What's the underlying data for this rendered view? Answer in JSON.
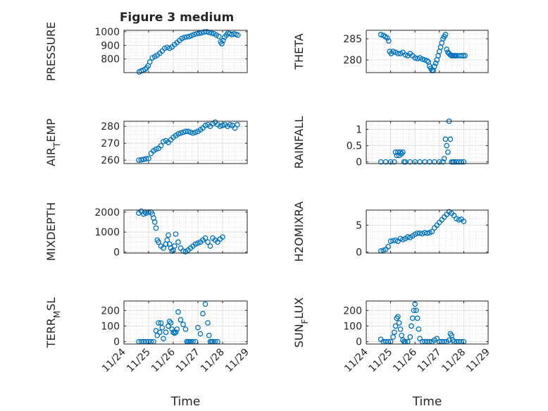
{
  "figure": {
    "title": "Figure 3 medium",
    "marker_color": "#0072BD",
    "axis_color": "#262626",
    "grid_color": "#c8c8c8"
  },
  "x_axis": {
    "label": "Time",
    "range": [
      0,
      5
    ],
    "tick_values": [
      0,
      1,
      2,
      3,
      4,
      5
    ],
    "tick_labels": [
      "11/24",
      "11/25",
      "11/26",
      "11/27",
      "11/28",
      "11/29"
    ]
  },
  "chart_data": [
    {
      "type": "scatter",
      "title": "Figure 3 medium",
      "ylabel": "PRESSURE",
      "ylim": [
        700,
        1010
      ],
      "yticks": [
        800,
        900,
        1000
      ],
      "yticklabels": [
        "800",
        "900",
        "1000"
      ],
      "x": [
        0.62,
        0.7,
        0.78,
        0.86,
        0.92,
        0.98,
        1.05,
        1.15,
        1.25,
        1.35,
        1.45,
        1.55,
        1.65,
        1.75,
        1.85,
        1.95,
        2.05,
        2.15,
        2.25,
        2.35,
        2.45,
        2.55,
        2.65,
        2.75,
        2.85,
        2.95,
        3.05,
        3.15,
        3.25,
        3.35,
        3.45,
        3.55,
        3.65,
        3.75,
        3.85,
        3.92,
        3.97,
        4.02,
        4.08,
        4.15,
        4.22,
        4.3,
        4.38,
        4.46,
        4.54,
        4.62
      ],
      "y": [
        705,
        712,
        718,
        725,
        735,
        750,
        778,
        808,
        818,
        828,
        842,
        858,
        878,
        885,
        878,
        888,
        905,
        920,
        935,
        950,
        958,
        962,
        965,
        972,
        980,
        985,
        988,
        992,
        998,
        1000,
        995,
        990,
        985,
        975,
        965,
        925,
        912,
        935,
        960,
        975,
        990,
        985,
        978,
        985,
        980,
        975
      ],
      "xlabel": "Time"
    },
    {
      "type": "scatter",
      "ylabel": "THETA",
      "ylim": [
        277,
        287
      ],
      "yticks": [
        280,
        285
      ],
      "yticklabels": [
        "280",
        "285"
      ],
      "x": [
        0.6,
        0.7,
        0.78,
        0.86,
        0.92,
        0.96,
        1.02,
        1.1,
        1.2,
        1.3,
        1.4,
        1.5,
        1.6,
        1.7,
        1.8,
        1.9,
        2.0,
        2.1,
        2.2,
        2.3,
        2.4,
        2.5,
        2.55,
        2.6,
        2.65,
        2.7,
        2.75,
        2.8,
        2.85,
        2.9,
        2.95,
        3.0,
        3.05,
        3.1,
        3.15,
        3.2,
        3.25,
        3.3,
        3.35,
        3.4,
        3.45,
        3.5,
        3.55,
        3.6,
        3.65,
        3.7,
        3.8,
        3.9,
        3.98,
        4.05
      ],
      "y": [
        286.0,
        285.8,
        285.5,
        285.2,
        284.5,
        282.0,
        281.5,
        282.0,
        281.8,
        281.5,
        281.5,
        281.8,
        281.2,
        281.0,
        281.5,
        281.0,
        280.5,
        280.3,
        280.5,
        280.2,
        280.0,
        279.8,
        279.5,
        278.5,
        278.0,
        277.5,
        277.5,
        278.5,
        279.2,
        280.0,
        281.0,
        282.0,
        283.0,
        284.0,
        285.0,
        285.5,
        286.0,
        282.5,
        281.8,
        281.5,
        281.2,
        281.0,
        281.0,
        281.0,
        281.0,
        281.0,
        281.0,
        281.0,
        281.0,
        281.0
      ],
      "xlabel": "Time"
    },
    {
      "type": "scatter",
      "ylabel": "AIR_TEMP",
      "ylim": [
        258,
        283
      ],
      "yticks": [
        260,
        270,
        280
      ],
      "yticklabels": [
        "260",
        "270",
        "280"
      ],
      "x": [
        0.6,
        0.7,
        0.8,
        0.9,
        1.0,
        1.1,
        1.2,
        1.3,
        1.4,
        1.5,
        1.6,
        1.7,
        1.8,
        1.9,
        2.0,
        2.1,
        2.2,
        2.3,
        2.4,
        2.5,
        2.6,
        2.7,
        2.8,
        2.9,
        3.0,
        3.1,
        3.2,
        3.3,
        3.4,
        3.5,
        3.6,
        3.7,
        3.8,
        3.9,
        4.0,
        4.1,
        4.2,
        4.3,
        4.4,
        4.5,
        4.6
      ],
      "y": [
        260.0,
        260.2,
        260.5,
        260.8,
        261.0,
        264.0,
        265.5,
        266.5,
        267.0,
        268.5,
        271.0,
        271.5,
        270.5,
        272.0,
        273.5,
        274.5,
        275.5,
        276.0,
        276.5,
        277.0,
        277.0,
        276.5,
        276.0,
        276.5,
        277.0,
        278.0,
        279.0,
        280.5,
        281.0,
        280.0,
        281.5,
        282.5,
        281.0,
        280.0,
        280.5,
        281.0,
        280.0,
        281.0,
        280.5,
        279.0,
        281.0
      ],
      "xlabel": "Time"
    },
    {
      "type": "scatter",
      "ylabel": "RAINFALL",
      "ylim": [
        -0.05,
        1.25
      ],
      "yticks": [
        0,
        0.5,
        1
      ],
      "yticklabels": [
        "0",
        "0.5",
        "1"
      ],
      "x": [
        0.6,
        0.8,
        1.0,
        1.15,
        1.2,
        1.25,
        1.3,
        1.35,
        1.4,
        1.45,
        1.5,
        1.55,
        1.6,
        1.8,
        2.0,
        2.2,
        2.4,
        2.6,
        2.8,
        3.0,
        3.15,
        3.2,
        3.25,
        3.3,
        3.35,
        3.4,
        3.45,
        3.5,
        3.55,
        3.6,
        3.7,
        3.8,
        3.9,
        4.0
      ],
      "y": [
        0,
        0,
        0,
        0,
        0.3,
        0.2,
        0.3,
        0.2,
        0.3,
        0.25,
        0.3,
        0,
        0,
        0,
        0,
        0,
        0,
        0,
        0,
        0,
        0,
        0.1,
        0.7,
        0.5,
        0.3,
        1.25,
        0.7,
        0,
        0,
        0,
        0,
        0,
        0,
        0
      ],
      "xlabel": "Time"
    },
    {
      "type": "scatter",
      "ylabel": "MIXDEPTH",
      "ylim": [
        -50,
        2100
      ],
      "yticks": [
        0,
        1000,
        2000
      ],
      "yticklabels": [
        "0",
        "1000",
        "2000"
      ],
      "x": [
        0.6,
        0.7,
        0.8,
        0.85,
        0.9,
        1.0,
        1.1,
        1.15,
        1.2,
        1.25,
        1.3,
        1.35,
        1.4,
        1.5,
        1.6,
        1.7,
        1.75,
        1.8,
        1.85,
        1.9,
        1.95,
        2.0,
        2.05,
        2.1,
        2.2,
        2.3,
        2.4,
        2.5,
        2.6,
        2.7,
        2.8,
        2.9,
        3.0,
        3.1,
        3.2,
        3.3,
        3.4,
        3.5,
        3.6,
        3.7,
        3.8,
        3.9,
        4.0
      ],
      "y": [
        1950,
        2050,
        1900,
        2000,
        1950,
        2000,
        2000,
        1900,
        1700,
        1500,
        1200,
        600,
        500,
        300,
        200,
        400,
        600,
        850,
        400,
        200,
        50,
        100,
        300,
        900,
        500,
        200,
        50,
        20,
        100,
        200,
        300,
        400,
        450,
        500,
        600,
        700,
        500,
        300,
        700,
        600,
        500,
        650,
        750
      ],
      "xlabel": "Time"
    },
    {
      "type": "scatter",
      "ylabel": "H2OMIXRA",
      "ylim": [
        -0.2,
        7.8
      ],
      "yticks": [
        0,
        5
      ],
      "yticklabels": [
        "0",
        "5"
      ],
      "x": [
        0.6,
        0.7,
        0.8,
        0.9,
        1.0,
        1.1,
        1.2,
        1.3,
        1.4,
        1.5,
        1.6,
        1.7,
        1.8,
        1.9,
        2.0,
        2.1,
        2.2,
        2.3,
        2.4,
        2.5,
        2.6,
        2.7,
        2.8,
        2.9,
        3.0,
        3.1,
        3.2,
        3.3,
        3.4,
        3.5,
        3.6,
        3.7,
        3.8,
        3.9,
        4.0
      ],
      "y": [
        0.2,
        0.3,
        0.5,
        1.0,
        2.0,
        2.1,
        2.2,
        2.0,
        2.5,
        2.3,
        2.5,
        2.8,
        2.7,
        3.0,
        3.3,
        3.5,
        3.5,
        3.4,
        3.6,
        3.5,
        3.6,
        3.8,
        4.5,
        5.0,
        5.5,
        6.0,
        6.5,
        7.0,
        7.5,
        7.2,
        6.8,
        6.2,
        6.0,
        6.1,
        5.7
      ],
      "xlabel": "Time"
    },
    {
      "type": "scatter",
      "ylabel": "TERR_MSL",
      "ylim": [
        -15,
        260
      ],
      "yticks": [
        0,
        100,
        200
      ],
      "yticklabels": [
        "0",
        "100",
        "200"
      ],
      "x": [
        0.6,
        0.7,
        0.8,
        0.9,
        1.0,
        1.1,
        1.2,
        1.3,
        1.35,
        1.4,
        1.45,
        1.5,
        1.55,
        1.6,
        1.7,
        1.8,
        1.85,
        1.9,
        1.95,
        2.0,
        2.05,
        2.1,
        2.15,
        2.2,
        2.3,
        2.4,
        2.5,
        2.55,
        2.6,
        2.65,
        2.7,
        2.8,
        2.9,
        3.0,
        3.1,
        3.2,
        3.3,
        3.4,
        3.45,
        3.5,
        3.55,
        3.6,
        3.7,
        3.8
      ],
      "y": [
        0,
        0,
        0,
        0,
        0,
        0,
        0,
        70,
        40,
        120,
        60,
        120,
        90,
        20,
        60,
        100,
        130,
        120,
        80,
        60,
        55,
        60,
        80,
        190,
        140,
        110,
        80,
        0,
        0,
        0,
        0,
        0,
        0,
        90,
        50,
        180,
        240,
        120,
        40,
        0,
        0,
        0,
        0,
        0
      ],
      "xlabel": "Time"
    },
    {
      "type": "scatter",
      "ylabel": "SUN_FLUX",
      "ylim": [
        -15,
        260
      ],
      "yticks": [
        0,
        100,
        200
      ],
      "yticklabels": [
        "0",
        "100",
        "200"
      ],
      "x": [
        0.6,
        0.7,
        0.8,
        0.9,
        1.0,
        1.1,
        1.15,
        1.2,
        1.25,
        1.3,
        1.35,
        1.4,
        1.45,
        1.5,
        1.55,
        1.6,
        1.7,
        1.8,
        1.85,
        1.9,
        1.95,
        2.0,
        2.05,
        2.1,
        2.15,
        2.2,
        2.3,
        2.4,
        2.5,
        2.6,
        2.7,
        2.8,
        2.9,
        3.0,
        3.1,
        3.2,
        3.3,
        3.4,
        3.45,
        3.5,
        3.55,
        3.6,
        3.7,
        3.8,
        3.9,
        4.0
      ],
      "y": [
        15,
        0,
        0,
        0,
        0,
        30,
        60,
        100,
        150,
        160,
        120,
        80,
        40,
        10,
        0,
        0,
        0,
        30,
        100,
        150,
        200,
        240,
        200,
        150,
        80,
        20,
        0,
        0,
        0,
        0,
        0,
        10,
        20,
        0,
        0,
        0,
        0,
        10,
        50,
        40,
        10,
        0,
        0,
        0,
        0,
        0
      ],
      "xlabel": "Time"
    }
  ]
}
